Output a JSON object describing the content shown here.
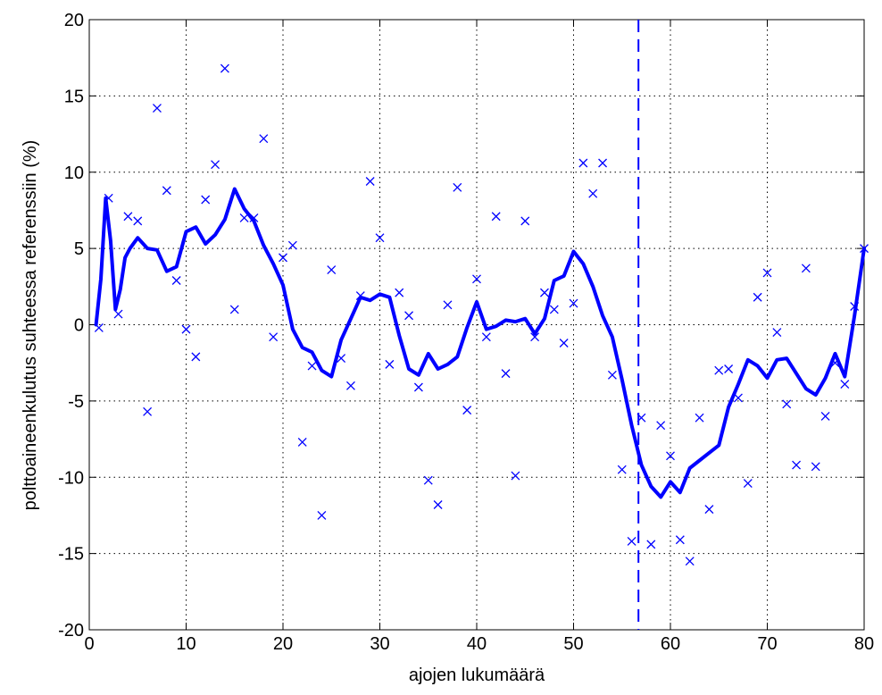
{
  "chart_data": {
    "type": "scatter",
    "title": "",
    "xlabel": "ajojen lukumäärä",
    "ylabel": "polttoaineenkulutus suhteessa referenssiin (%)",
    "xlim": [
      0,
      80
    ],
    "ylim": [
      -20,
      20
    ],
    "xticks": [
      0,
      10,
      20,
      30,
      40,
      50,
      60,
      70,
      80
    ],
    "yticks": [
      -20,
      -15,
      -10,
      -5,
      0,
      5,
      10,
      15,
      20
    ],
    "grid": true,
    "color": "#0000ff",
    "series": [
      {
        "type": "scatter",
        "marker": "x",
        "x": [
          1,
          2,
          3,
          4,
          5,
          6,
          7,
          8,
          9,
          10,
          11,
          12,
          13,
          14,
          15,
          16,
          17,
          18,
          19,
          20,
          21,
          22,
          23,
          24,
          25,
          26,
          27,
          28,
          29,
          30,
          31,
          32,
          33,
          34,
          35,
          36,
          37,
          38,
          39,
          40,
          41,
          42,
          43,
          44,
          45,
          46,
          47,
          48,
          49,
          50,
          51,
          52,
          53,
          54,
          55,
          56,
          57,
          58,
          59,
          60,
          61,
          62,
          63,
          64,
          65,
          66,
          67,
          68,
          69,
          70,
          71,
          72,
          73,
          74,
          75,
          76,
          77,
          78,
          79,
          80
        ],
        "y": [
          -0.2,
          8.3,
          0.7,
          7.1,
          6.8,
          -5.7,
          14.2,
          8.8,
          2.9,
          -0.3,
          -2.1,
          8.2,
          10.5,
          16.8,
          1.0,
          7.0,
          7.0,
          12.2,
          -0.8,
          4.4,
          5.2,
          -7.7,
          -2.7,
          -12.5,
          3.6,
          -2.2,
          -4.0,
          1.9,
          9.4,
          5.7,
          -2.6,
          2.1,
          0.6,
          -4.1,
          -10.2,
          -11.8,
          1.3,
          9.0,
          -5.6,
          3.0,
          -0.8,
          7.1,
          -3.2,
          -9.9,
          6.8,
          -0.8,
          2.1,
          1.0,
          -1.2,
          1.4,
          10.6,
          8.6,
          10.6,
          -3.3,
          -9.5,
          -14.2,
          -6.1,
          -14.4,
          -6.6,
          -8.6,
          -14.1,
          -15.5,
          -6.1,
          -12.1,
          -3.0,
          -2.9,
          -4.8,
          -10.4,
          1.8,
          3.4,
          -0.5,
          -5.2,
          -9.2,
          3.7,
          -9.3,
          -6.0,
          -2.5,
          -3.9,
          1.2,
          5.0
        ]
      },
      {
        "type": "line",
        "x": [
          0.7,
          1.2,
          1.7,
          2.2,
          2.7,
          3.2,
          3.7,
          4.2,
          5,
          6,
          7,
          8,
          9,
          10,
          11,
          12,
          13,
          14,
          15,
          16,
          17,
          18,
          19,
          20,
          21,
          22,
          23,
          24,
          25,
          26,
          27,
          28,
          29,
          30,
          31,
          32,
          33,
          34,
          35,
          36,
          37,
          38,
          39,
          40,
          41,
          42,
          43,
          44,
          45,
          46,
          47,
          48,
          49,
          50,
          51,
          52,
          53,
          54,
          55,
          56,
          57,
          58,
          59,
          60,
          61,
          62,
          63,
          64,
          65,
          66,
          67,
          68,
          69,
          70,
          71,
          72,
          73,
          74,
          75,
          76,
          77,
          78,
          79,
          80
        ],
        "y": [
          0.0,
          3.0,
          8.3,
          5.5,
          1.0,
          2.3,
          4.4,
          5.0,
          5.7,
          5.0,
          4.9,
          3.5,
          3.8,
          6.1,
          6.4,
          5.3,
          5.9,
          6.9,
          8.9,
          7.6,
          6.8,
          5.2,
          4.0,
          2.6,
          -0.3,
          -1.5,
          -1.8,
          -3.0,
          -3.4,
          -1.0,
          0.4,
          1.8,
          1.6,
          2.0,
          1.8,
          -0.7,
          -2.9,
          -3.3,
          -1.9,
          -2.9,
          -2.6,
          -2.1,
          -0.2,
          1.5,
          -0.3,
          -0.1,
          0.3,
          0.2,
          0.4,
          -0.6,
          0.4,
          2.9,
          3.2,
          4.8,
          4.0,
          2.5,
          0.6,
          -0.8,
          -3.6,
          -6.6,
          -9.2,
          -10.6,
          -11.3,
          -10.3,
          -11.0,
          -9.4,
          -8.9,
          -8.4,
          -7.9,
          -5.4,
          -3.9,
          -2.3,
          -2.7,
          -3.5,
          -2.3,
          -2.2,
          -3.2,
          -4.2,
          -4.6,
          -3.5,
          -1.9,
          -3.4,
          0.6,
          5.0
        ]
      }
    ],
    "annotations": [
      {
        "type": "vline",
        "x": 56.7,
        "style": "dashed"
      }
    ]
  }
}
